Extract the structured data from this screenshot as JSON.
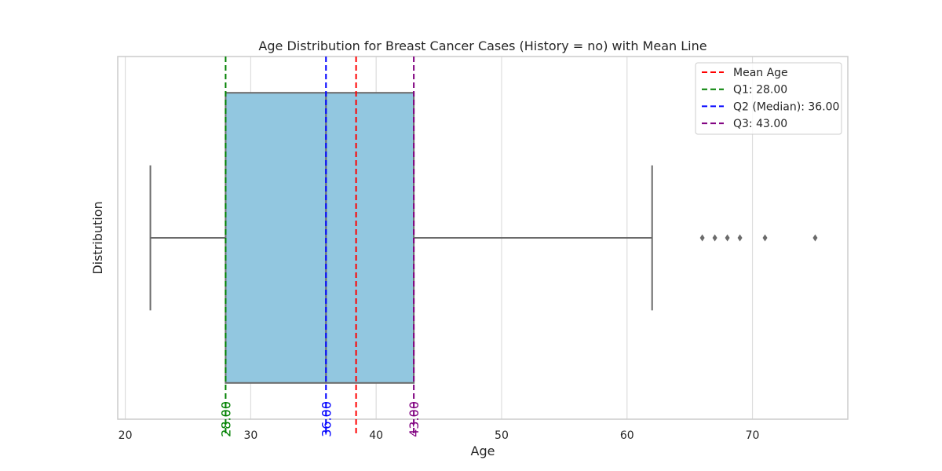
{
  "chart_data": {
    "type": "box",
    "orientation": "horizontal",
    "title": "Age Distribution for Breast Cancer Cases (History = no) with Mean Line",
    "xlabel": "Age",
    "ylabel": "Distribution",
    "xlim": [
      19.4,
      77.6
    ],
    "xticks": [
      20,
      30,
      40,
      50,
      60,
      70
    ],
    "grid": true,
    "legend_position": "top-right",
    "box": {
      "whisker_low": 22,
      "q1": 28,
      "median": 36,
      "q3": 43,
      "whisker_high": 62,
      "outliers": [
        66,
        67,
        68,
        69,
        71,
        75
      ],
      "color": "#92c7e0"
    },
    "reference_lines": [
      {
        "name": "Mean Age",
        "value": 38.4,
        "color": "#ff0000",
        "legend": "Mean Age",
        "label": ""
      },
      {
        "name": "Q1",
        "value": 28,
        "color": "#008000",
        "legend": "Q1: 28.00",
        "label": "28.00"
      },
      {
        "name": "Q2",
        "value": 36,
        "color": "#0000ff",
        "legend": "Q2 (Median): 36.00",
        "label": "36.00"
      },
      {
        "name": "Q3",
        "value": 43,
        "color": "#800080",
        "legend": "Q3: 43.00",
        "label": "43.00"
      }
    ]
  }
}
